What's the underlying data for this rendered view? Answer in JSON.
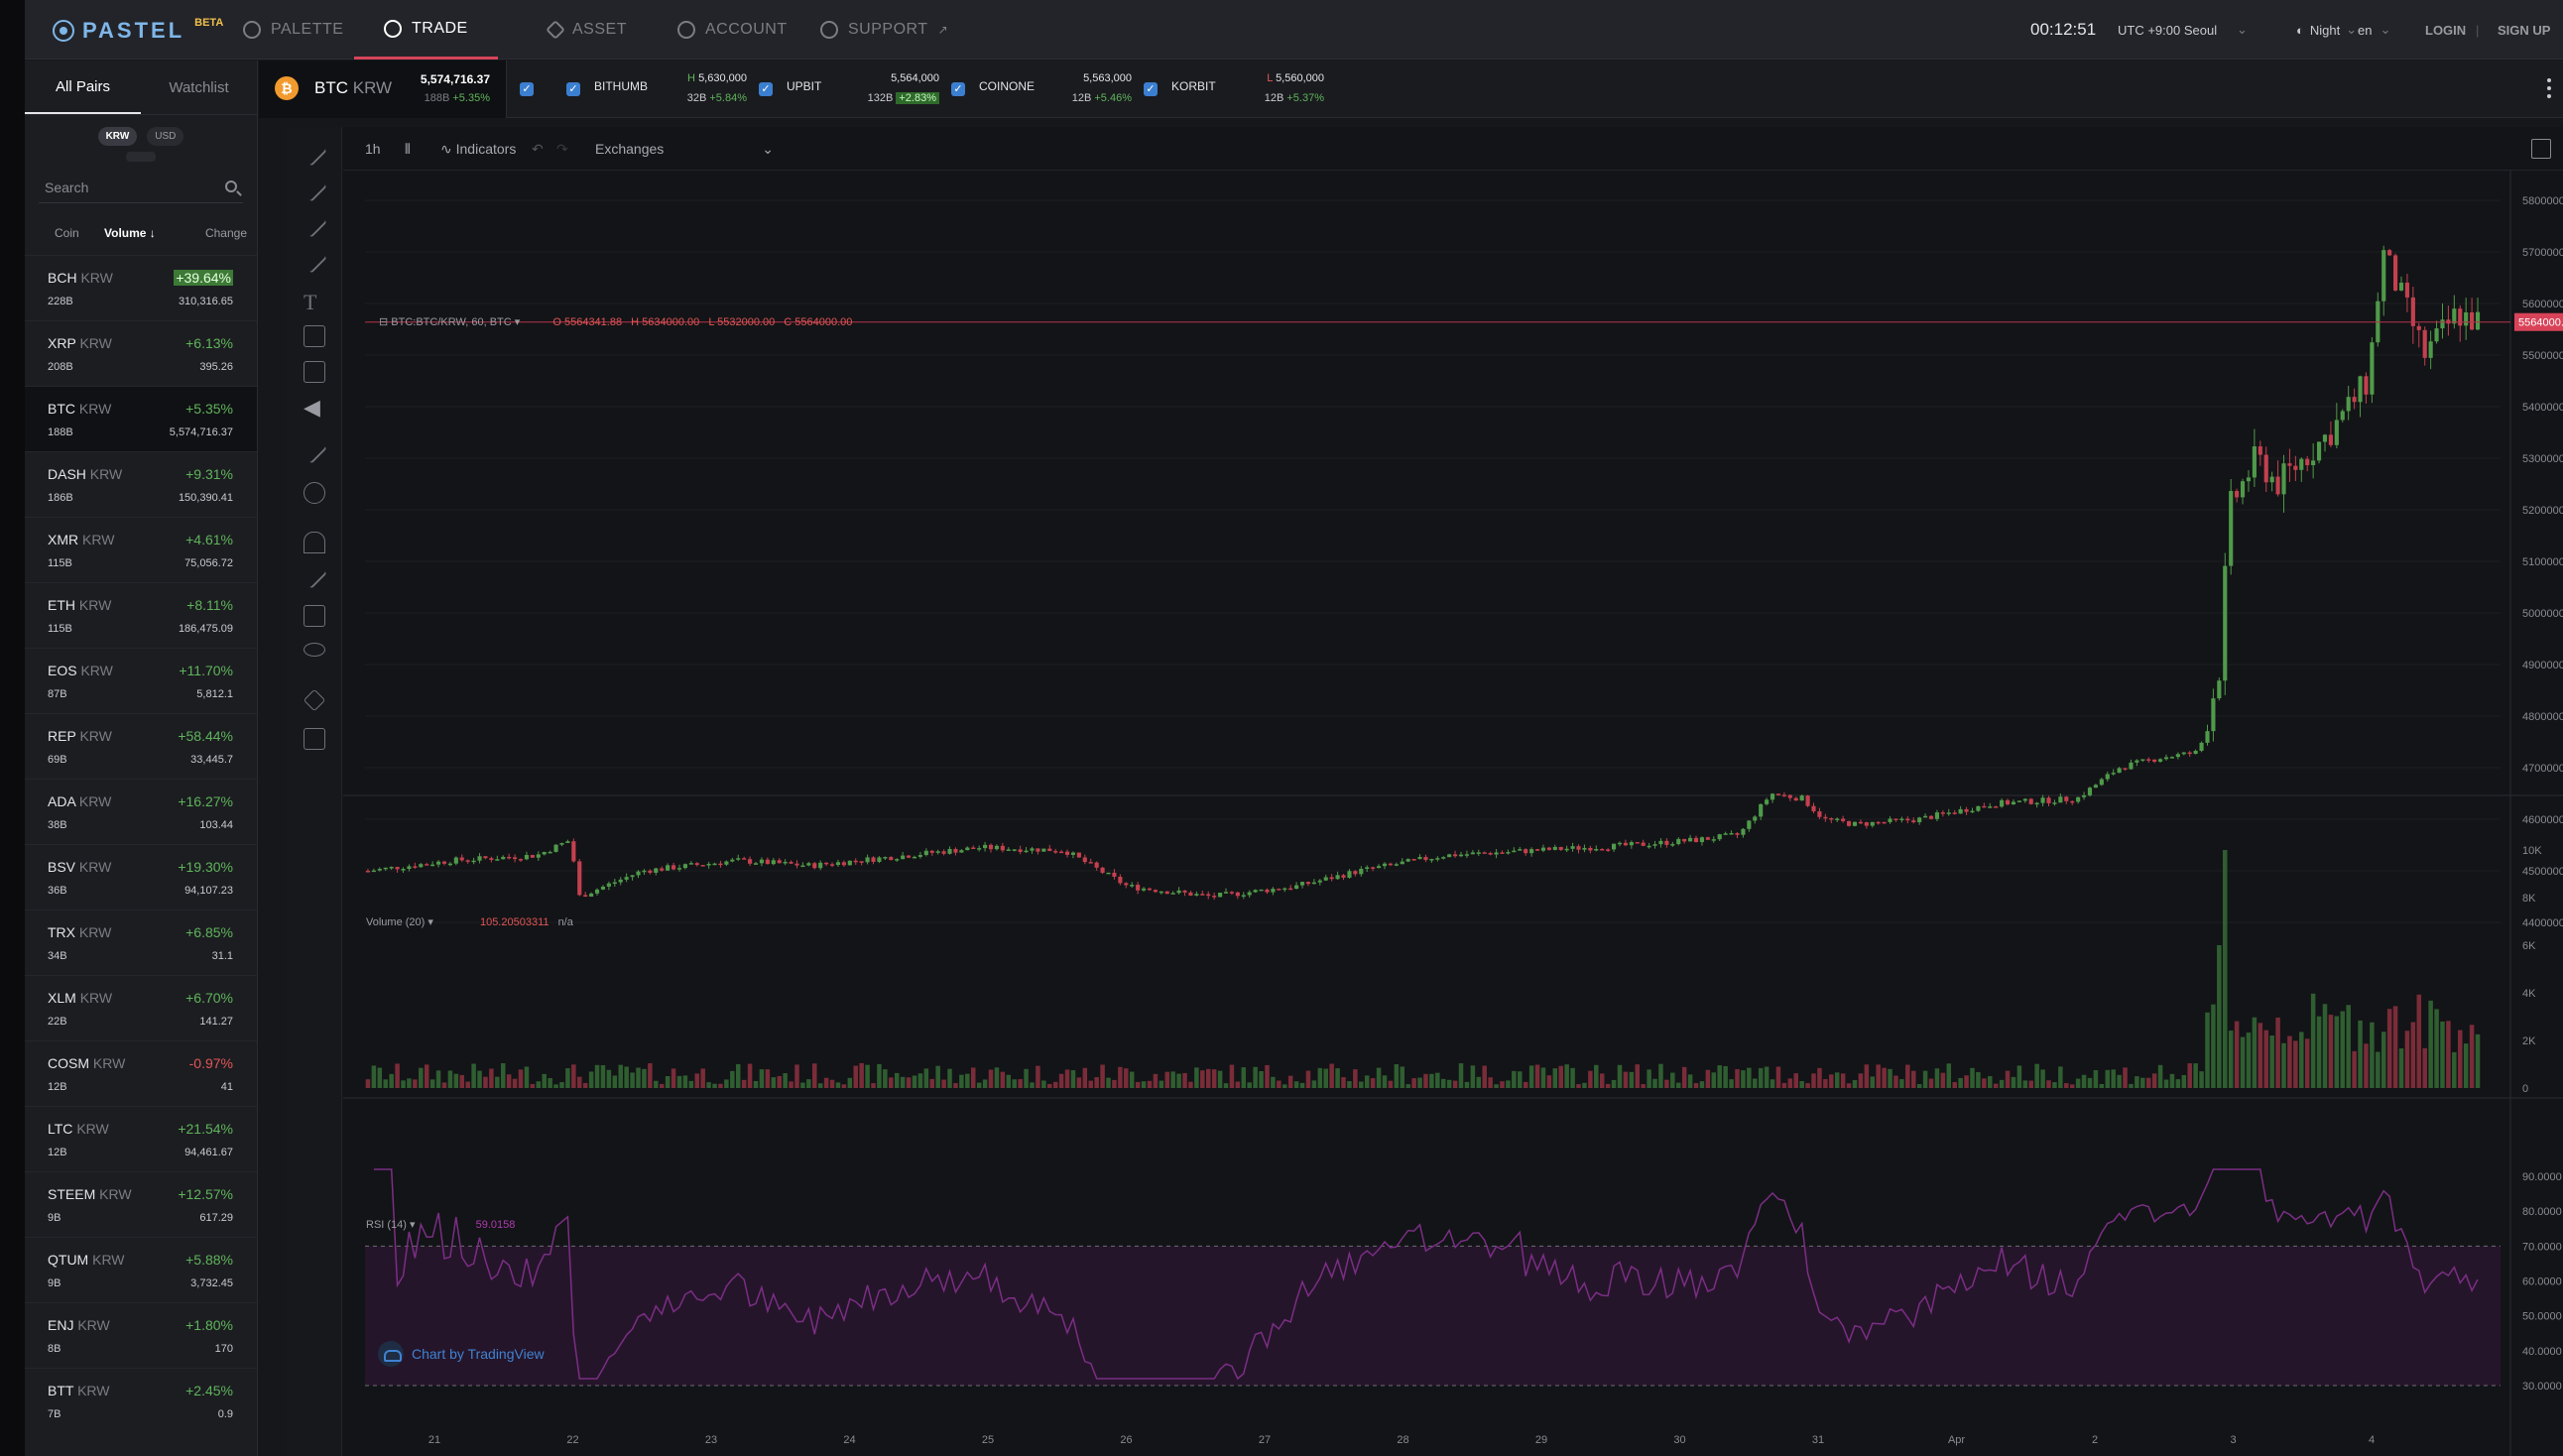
{
  "brand": {
    "name": "PASTEL",
    "badge": "BETA"
  },
  "nav": [
    {
      "label": "PALETTE",
      "icon": "palette-icon"
    },
    {
      "label": "TRADE",
      "icon": "trade-icon",
      "active": true
    },
    {
      "label": "ASSET",
      "icon": "diamond-icon"
    },
    {
      "label": "ACCOUNT",
      "icon": "key-icon"
    },
    {
      "label": "SUPPORT",
      "icon": "support-icon"
    }
  ],
  "header_right": {
    "clock": "00:12:51",
    "timezone": "UTC +9:00 Seoul",
    "theme": "Night",
    "lang": "en",
    "login": "LOGIN",
    "signup": "SIGN UP"
  },
  "sidebar": {
    "tabs": [
      "All Pairs",
      "Watchlist"
    ],
    "currencies": [
      "KRW",
      "USD"
    ],
    "search_placeholder": "Search",
    "columns": {
      "coin": "Coin",
      "volume": "Volume",
      "change": "Change"
    },
    "coins": [
      {
        "sym": "BCH",
        "quote": "KRW",
        "vol": "228B",
        "chg": "+39.64%",
        "price": "310,316.65",
        "highlight": true
      },
      {
        "sym": "XRP",
        "quote": "KRW",
        "vol": "208B",
        "chg": "+6.13%",
        "price": "395.26"
      },
      {
        "sym": "BTC",
        "quote": "KRW",
        "vol": "188B",
        "chg": "+5.35%",
        "price": "5,574,716.37",
        "selected": true
      },
      {
        "sym": "DASH",
        "quote": "KRW",
        "vol": "186B",
        "chg": "+9.31%",
        "price": "150,390.41"
      },
      {
        "sym": "XMR",
        "quote": "KRW",
        "vol": "115B",
        "chg": "+4.61%",
        "price": "75,056.72"
      },
      {
        "sym": "ETH",
        "quote": "KRW",
        "vol": "115B",
        "chg": "+8.11%",
        "price": "186,475.09"
      },
      {
        "sym": "EOS",
        "quote": "KRW",
        "vol": "87B",
        "chg": "+11.70%",
        "price": "5,812.1"
      },
      {
        "sym": "REP",
        "quote": "KRW",
        "vol": "69B",
        "chg": "+58.44%",
        "price": "33,445.7"
      },
      {
        "sym": "ADA",
        "quote": "KRW",
        "vol": "38B",
        "chg": "+16.27%",
        "price": "103.44"
      },
      {
        "sym": "BSV",
        "quote": "KRW",
        "vol": "36B",
        "chg": "+19.30%",
        "price": "94,107.23"
      },
      {
        "sym": "TRX",
        "quote": "KRW",
        "vol": "34B",
        "chg": "+6.85%",
        "price": "31.1"
      },
      {
        "sym": "XLM",
        "quote": "KRW",
        "vol": "22B",
        "chg": "+6.70%",
        "price": "141.27"
      },
      {
        "sym": "COSM",
        "quote": "KRW",
        "vol": "12B",
        "chg": "-0.97%",
        "price": "41",
        "negative": true
      },
      {
        "sym": "LTC",
        "quote": "KRW",
        "vol": "12B",
        "chg": "+21.54%",
        "price": "94,461.67"
      },
      {
        "sym": "STEEM",
        "quote": "KRW",
        "vol": "9B",
        "chg": "+12.57%",
        "price": "617.29"
      },
      {
        "sym": "QTUM",
        "quote": "KRW",
        "vol": "9B",
        "chg": "+5.88%",
        "price": "3,732.45"
      },
      {
        "sym": "ENJ",
        "quote": "KRW",
        "vol": "8B",
        "chg": "+1.80%",
        "price": "170"
      },
      {
        "sym": "BTT",
        "quote": "KRW",
        "vol": "7B",
        "chg": "+2.45%",
        "price": "0.9"
      }
    ]
  },
  "ticker": {
    "pair": {
      "base": "BTC",
      "quote": "KRW",
      "price": "5,574,716.37",
      "vol": "188B",
      "chg": "+5.35%"
    },
    "exchanges": [
      {
        "name": "BITHUMB",
        "tag": "H",
        "price": "5,630,000",
        "vol": "32B",
        "chg": "+5.84%"
      },
      {
        "name": "UPBIT",
        "tag": "",
        "price": "5,564,000",
        "vol": "132B",
        "chg": "+2.83%",
        "boxed": true
      },
      {
        "name": "COINONE",
        "tag": "",
        "price": "5,563,000",
        "vol": "12B",
        "chg": "+5.46%"
      },
      {
        "name": "KORBIT",
        "tag": "L",
        "price": "5,560,000",
        "vol": "12B",
        "chg": "+5.37%"
      }
    ]
  },
  "chart_toolbar": {
    "interval": "1h",
    "indicators": "Indicators",
    "exchanges": "Exchanges"
  },
  "chart_data": {
    "type": "candlestick",
    "symbol_label": "BTC:BTC/KRW, 60, BTC",
    "ohlc": {
      "o": "O 5564341.88",
      "h": "H 5634000.00",
      "l": "L 5532000.00",
      "c": "C 5564000.00"
    },
    "last_price_label": "5564000.00",
    "price_ticks": [
      5800000,
      5700000,
      5600000,
      5500000,
      5400000,
      5300000,
      5200000,
      5100000,
      5000000,
      4900000,
      4800000,
      4700000,
      4600000,
      4500000,
      4400000
    ],
    "x_labels": [
      "21",
      "22",
      "23",
      "24",
      "25",
      "26",
      "27",
      "28",
      "29",
      "30",
      "31",
      "Apr",
      "2",
      "3",
      "4"
    ],
    "volume": {
      "label": "Volume (20)",
      "value": "105.20503311",
      "extra": "n/a",
      "ticks": [
        "10K",
        "8K",
        "6K",
        "4K",
        "2K",
        "0"
      ]
    },
    "rsi": {
      "label": "RSI (14)",
      "value": "59.0158",
      "ticks": [
        "90.0000",
        "80.0000",
        "70.0000",
        "60.0000",
        "50.0000",
        "40.0000",
        "30.0000"
      ],
      "upper": 70,
      "lower": 30
    },
    "close_keypoints": [
      [
        0,
        4500000
      ],
      [
        40,
        4520000
      ],
      [
        80,
        4530000
      ],
      [
        96,
        4560000
      ],
      [
        100,
        4450000
      ],
      [
        130,
        4500000
      ],
      [
        175,
        4520000
      ],
      [
        210,
        4510000
      ],
      [
        255,
        4530000
      ],
      [
        290,
        4545000
      ],
      [
        330,
        4540000
      ],
      [
        360,
        4470000
      ],
      [
        400,
        4450000
      ],
      [
        440,
        4470000
      ],
      [
        470,
        4500000
      ],
      [
        510,
        4530000
      ],
      [
        555,
        4540000
      ],
      [
        600,
        4550000
      ],
      [
        630,
        4560000
      ],
      [
        650,
        4570000
      ],
      [
        665,
        4650000
      ],
      [
        680,
        4640000
      ],
      [
        690,
        4600000
      ],
      [
        705,
        4590000
      ],
      [
        735,
        4600000
      ],
      [
        770,
        4630000
      ],
      [
        810,
        4640000
      ],
      [
        830,
        4700000
      ],
      [
        850,
        4720000
      ],
      [
        868,
        4730000
      ],
      [
        878,
        4900000
      ],
      [
        882,
        5200000
      ],
      [
        895,
        5300000
      ],
      [
        905,
        5250000
      ],
      [
        930,
        5350000
      ],
      [
        948,
        5450000
      ],
      [
        955,
        5700000
      ],
      [
        965,
        5600000
      ],
      [
        975,
        5500000
      ],
      [
        990,
        5580000
      ],
      [
        1000,
        5564000
      ]
    ]
  },
  "attribution": "Chart by TradingView"
}
